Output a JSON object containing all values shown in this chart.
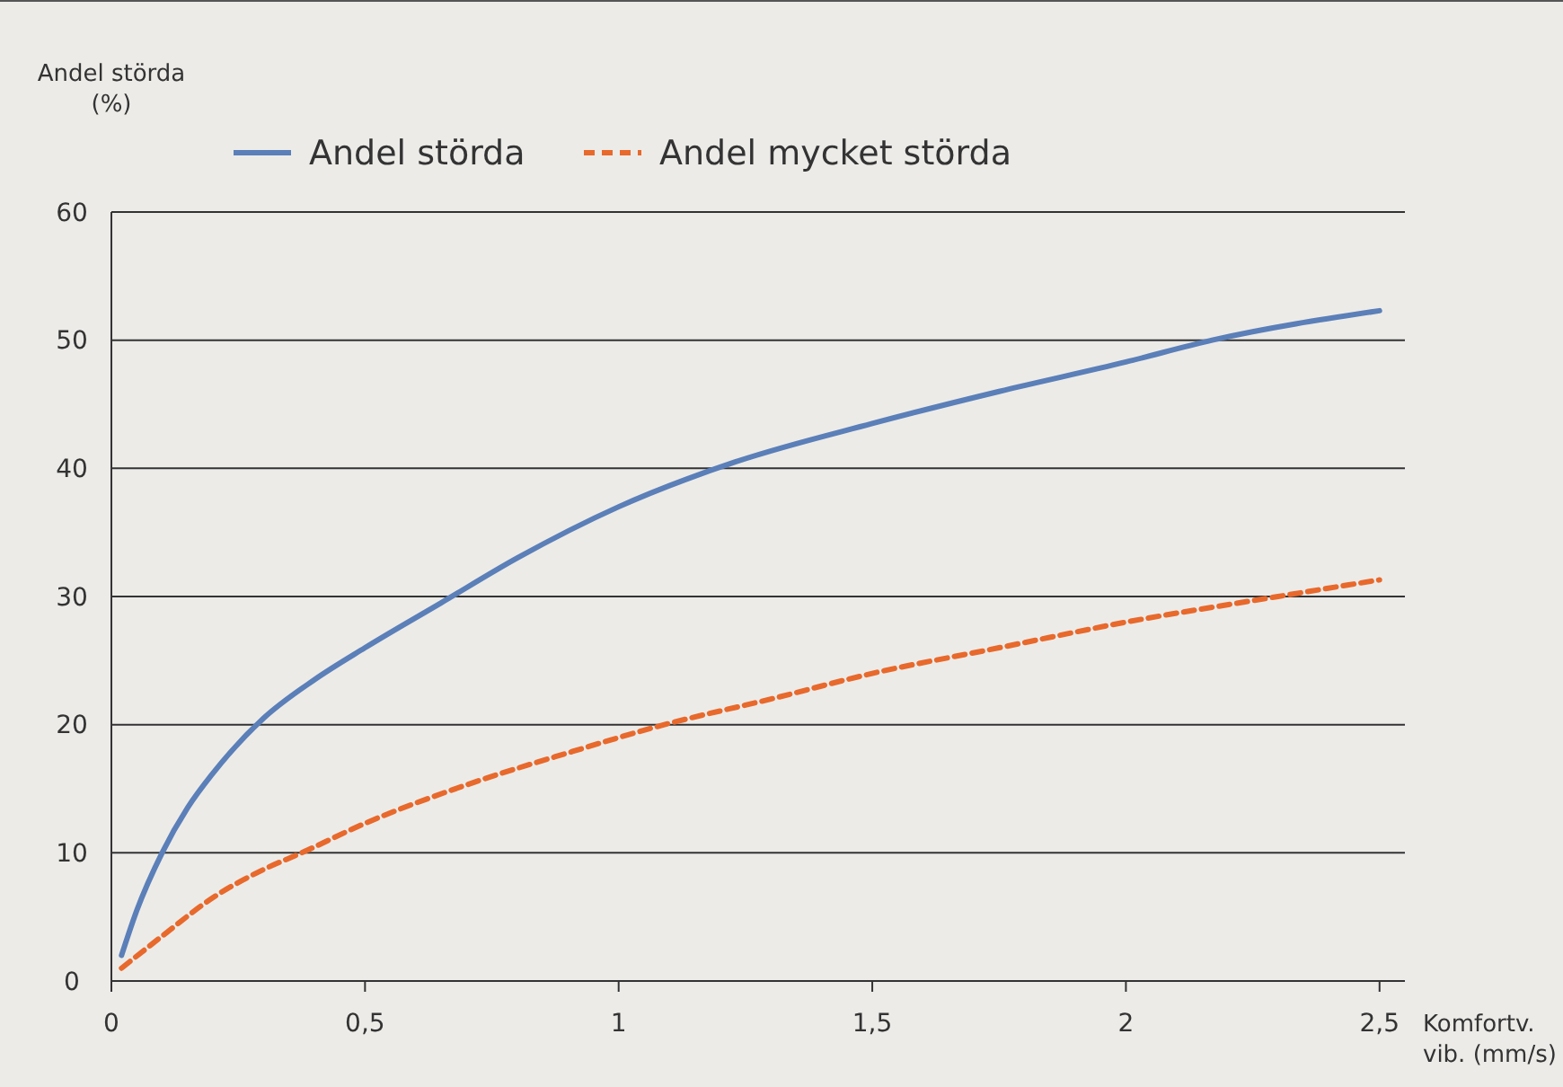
{
  "chart_data": {
    "type": "line",
    "ylabel": "Andel störda\n(%)",
    "xlabel": "Komfortv.\nvib. (mm/s)",
    "xlim": [
      0,
      2.55
    ],
    "ylim": [
      0,
      60
    ],
    "xticks": [
      0,
      {
        "value": 0.5,
        "label": "0,5"
      },
      1,
      {
        "value": 1.5,
        "label": "1,5"
      },
      2,
      {
        "value": 2.5,
        "label": "2,5"
      }
    ],
    "yticks": [
      0,
      10,
      20,
      30,
      40,
      50,
      60
    ],
    "grid": "y",
    "legend": "top",
    "marker": "none",
    "series": [
      {
        "name": "Andel störda",
        "color": "#5b7fb8",
        "line_style": "solid",
        "x": [
          0.02,
          0.05,
          0.1,
          0.15,
          0.2,
          0.3,
          0.4,
          0.5,
          0.65,
          0.8,
          1.0,
          1.23,
          1.5,
          1.75,
          2.0,
          2.17,
          2.5
        ],
        "values": [
          2,
          5.5,
          10,
          13.5,
          16.2,
          20.5,
          23.5,
          26,
          29.5,
          33,
          37,
          40.5,
          43.5,
          46,
          48.3,
          50,
          52.3
        ]
      },
      {
        "name": "Andel mycket störda",
        "color": "#e8692c",
        "line_style": "dashed",
        "x": [
          0.02,
          0.1,
          0.2,
          0.3,
          0.375,
          0.5,
          0.7,
          0.9,
          1.09,
          1.3,
          1.5,
          1.75,
          2.0,
          2.3,
          2.5
        ],
        "values": [
          1,
          3.5,
          6.5,
          8.7,
          10,
          12.3,
          15.3,
          17.8,
          20,
          22,
          24,
          26,
          28,
          30,
          31.3
        ]
      }
    ]
  }
}
